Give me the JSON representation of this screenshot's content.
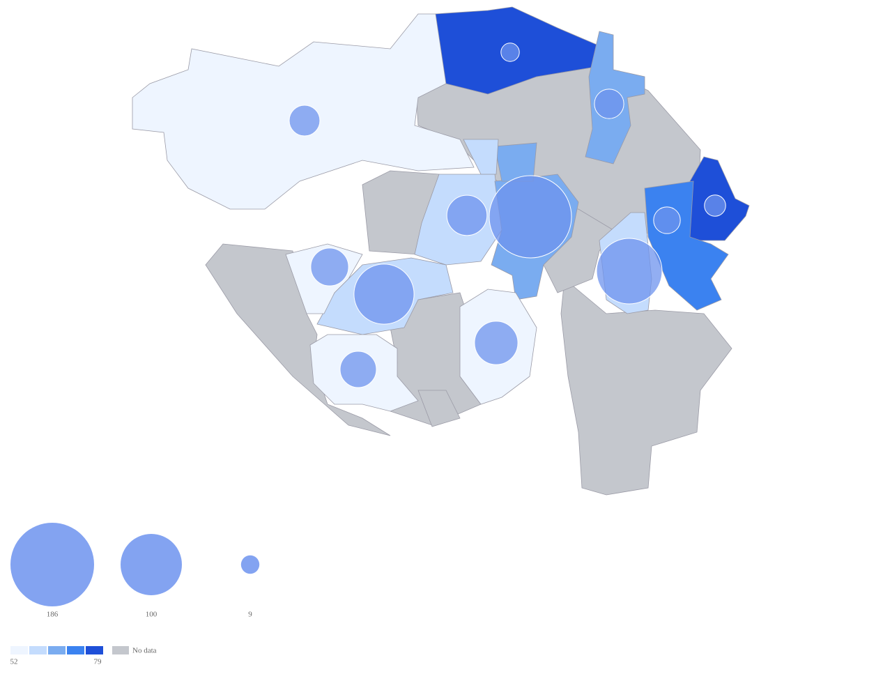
{
  "chart_data": {
    "type": "map",
    "regions": [
      {
        "value": 53
      },
      {
        "value": 78
      },
      {
        "value": 65
      },
      {
        "value": 78
      },
      {
        "value": 72
      },
      {
        "value": 58
      },
      {
        "value": 65
      },
      {
        "value": 58
      },
      {
        "value": 53
      },
      {
        "value": 53
      },
      {
        "value": 53
      },
      {
        "value": 58
      },
      {
        "value": 65
      },
      {
        "value": 58
      }
    ],
    "bubbles": [
      180,
      114,
      96,
      43,
      50,
      38,
      35,
      25,
      23,
      19,
      9,
      12
    ],
    "bubble_color": "#6d93ee",
    "color_scale": {
      "min": 52,
      "max": 79,
      "colors": [
        "#eef5ff",
        "#c4dcfd",
        "#7aacf0",
        "#3b82f0",
        "#1e4fd8"
      ],
      "nodata_color": "#c4c7cd",
      "nodata_label": "No data"
    },
    "size_legend": [
      186,
      100,
      9
    ]
  }
}
